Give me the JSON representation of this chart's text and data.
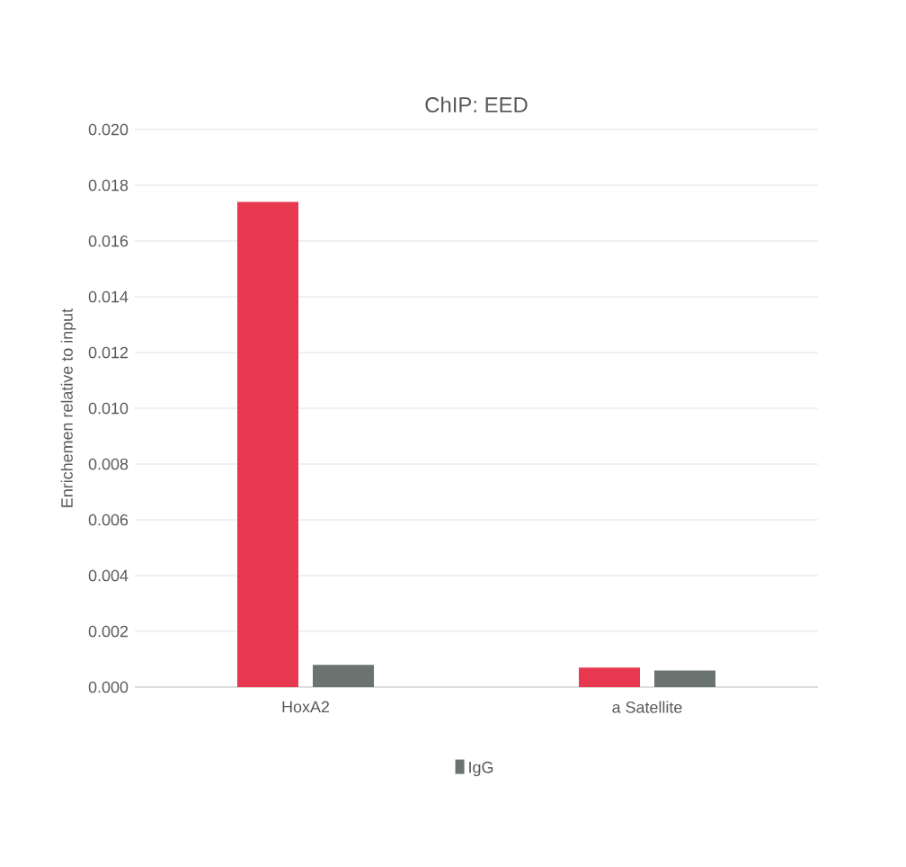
{
  "chart_data": {
    "type": "bar",
    "title": "ChIP: EED",
    "ylabel": "Enrichemen relative to input",
    "categories": [
      "HoxA2",
      "a Satellite"
    ],
    "series": [
      {
        "color": "#e8384f",
        "values": [
          0.0174,
          0.0007
        ]
      },
      {
        "name": "IgG",
        "color": "#6b7370",
        "values": [
          0.0008,
          0.0006
        ]
      }
    ],
    "ylim": [
      0,
      0.02
    ],
    "yticks": [
      {
        "value": 0,
        "label": "0.000"
      },
      {
        "value": 0.002,
        "label": "0.002"
      },
      {
        "value": 0.004,
        "label": "0.004"
      },
      {
        "value": 0.006,
        "label": "0.006"
      },
      {
        "value": 0.008,
        "label": "0.008"
      },
      {
        "value": 0.01,
        "label": "0.010"
      },
      {
        "value": 0.012,
        "label": "0.012"
      },
      {
        "value": 0.014,
        "label": "0.014"
      },
      {
        "value": 0.016,
        "label": "0.016"
      },
      {
        "value": 0.018,
        "label": "0.018"
      },
      {
        "value": 0.02,
        "label": "0.020"
      }
    ],
    "grid": "y",
    "legend": "bottom"
  }
}
